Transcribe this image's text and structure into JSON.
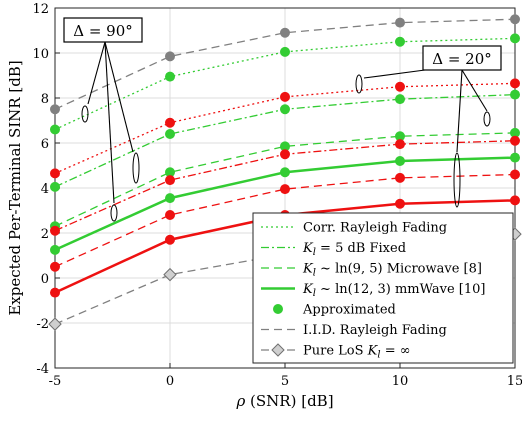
{
  "chart_data": {
    "type": "line",
    "xlabel": "ρ (SNR) [dB]",
    "ylabel": "Expected Per-Terminal SINR [dB]",
    "xlim": [
      -5,
      15
    ],
    "ylim": [
      -4,
      12
    ],
    "xticks": [
      -5,
      0,
      5,
      10,
      15
    ],
    "xtick_labels": [
      "-5",
      "0",
      "5",
      "10",
      "15"
    ],
    "yticks": [
      -4,
      -2,
      0,
      2,
      4,
      6,
      8,
      10,
      12
    ],
    "ytick_labels": [
      "-4",
      "-2",
      "0",
      "2",
      "4",
      "6",
      "8",
      "10",
      "12"
    ],
    "grid": true,
    "legend_position": "bottom-right",
    "x": [
      -5,
      0,
      5,
      10,
      15
    ],
    "series": [
      {
        "name": "Corr. Rayleigh Fading",
        "group": "corr",
        "angle": "90",
        "color": "#33cc33",
        "style": "dotted",
        "values": [
          6.6,
          8.95,
          10.05,
          10.5,
          10.65
        ]
      },
      {
        "name": "K_l = 5 dB Fixed",
        "group": "kfix",
        "angle": "90",
        "color": "#33cc33",
        "style": "dashdot",
        "values": [
          4.05,
          6.4,
          7.5,
          7.95,
          8.15
        ]
      },
      {
        "name": "K_l ~ ln(9,5) Microwave [8]",
        "group": "micro",
        "angle": "90",
        "color": "#33cc33",
        "style": "dashed",
        "values": [
          2.3,
          4.7,
          5.85,
          6.3,
          6.45
        ]
      },
      {
        "name": "K_l ~ ln(12,3) mmWave [10]",
        "group": "mm",
        "angle": "90",
        "color": "#33cc33",
        "style": "solid",
        "values": [
          1.25,
          3.55,
          4.7,
          5.2,
          5.35
        ]
      },
      {
        "name": "I.I.D. Rayleigh Fading",
        "group": "iid",
        "angle": "90",
        "color": "#808080",
        "style": "dashed",
        "values": [
          7.5,
          9.85,
          10.9,
          11.35,
          11.5
        ]
      },
      {
        "name": "Pure LoS K_l = ∞",
        "group": "los",
        "angle": "90",
        "color": "#808080",
        "style": "dashed",
        "values": [
          -2.05,
          0.15,
          1.05,
          1.55,
          1.95
        ]
      },
      {
        "name": "Corr. Rayleigh Fading",
        "group": "corr",
        "angle": "20",
        "color": "#ee1111",
        "style": "dotted",
        "values": [
          4.65,
          6.9,
          8.05,
          8.5,
          8.65
        ]
      },
      {
        "name": "K_l = 5 dB Fixed",
        "group": "kfix",
        "angle": "20",
        "color": "#ee1111",
        "style": "dashdot",
        "values": [
          2.1,
          4.35,
          5.5,
          5.95,
          6.1
        ]
      },
      {
        "name": "K_l ~ ln(9,5) Microwave [8]",
        "group": "micro",
        "angle": "20",
        "color": "#ee1111",
        "style": "dashed",
        "values": [
          0.5,
          2.8,
          3.95,
          4.45,
          4.6
        ]
      },
      {
        "name": "K_l ~ ln(12,3) mmWave [10]",
        "group": "mm",
        "angle": "20",
        "color": "#ee1111",
        "style": "solid",
        "values": [
          -0.65,
          1.7,
          2.8,
          3.3,
          3.45
        ]
      }
    ],
    "legend": [
      {
        "key": "corr",
        "label": "Corr. Rayleigh Fading",
        "color": "#33cc33",
        "style": "dotted"
      },
      {
        "key": "kfix",
        "label": "K_l = 5 dB Fixed",
        "color": "#33cc33",
        "style": "dashdot"
      },
      {
        "key": "micro",
        "label": "K_l ~ ln(9, 5) Microwave [8]",
        "color": "#33cc33",
        "style": "dashed"
      },
      {
        "key": "mm",
        "label": "K_l ~ ln(12, 3) mmWave [10]",
        "color": "#33cc33",
        "style": "solid"
      },
      {
        "key": "approx",
        "label": "Approximated",
        "color": "#33cc33",
        "style": "marker"
      },
      {
        "key": "iid",
        "label": "I.I.D. Rayleigh Fading",
        "color": "#808080",
        "style": "dashed"
      },
      {
        "key": "los",
        "label": "Pure LoS K_l = ∞",
        "color": "#808080",
        "style": "diamond"
      }
    ],
    "annotations": [
      {
        "text": "Δ = 90°",
        "target": "green curves"
      },
      {
        "text": "Δ = 20°",
        "target": "red curves"
      }
    ]
  }
}
